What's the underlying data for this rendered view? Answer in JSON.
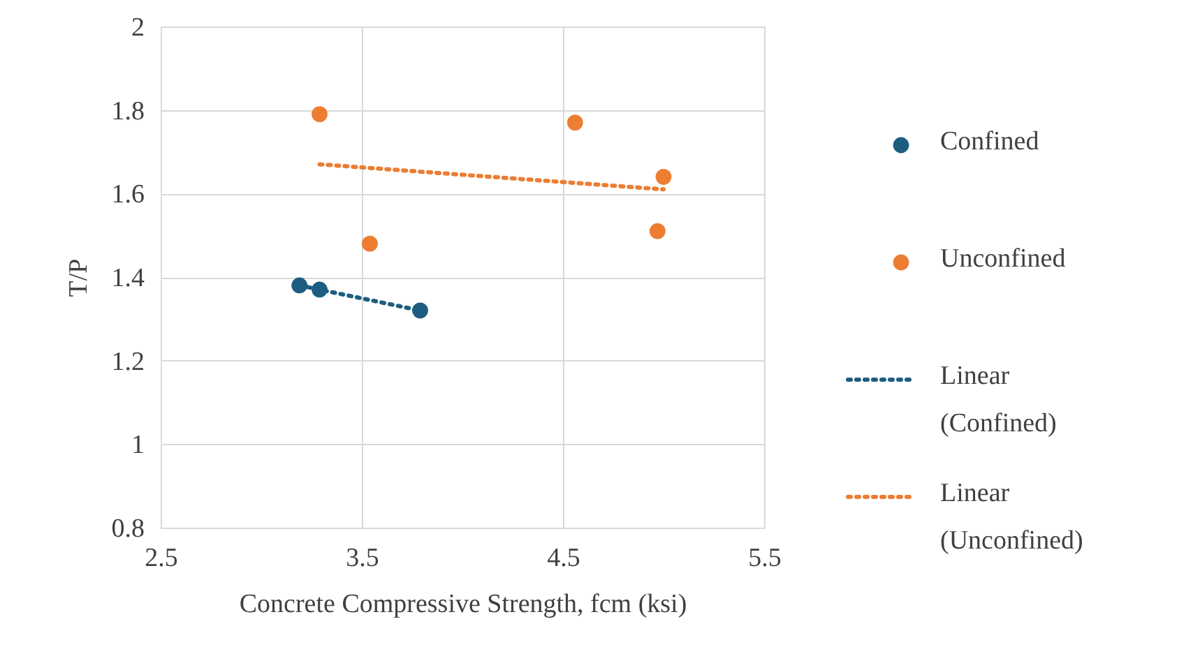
{
  "chart_data": {
    "type": "scatter",
    "xlabel": "Concrete Compressive Strength, fcm (ksi)",
    "ylabel": "T/P",
    "xlim": [
      2.5,
      5.5
    ],
    "xticks": [
      2.5,
      3.5,
      4.5,
      5.5
    ],
    "ylim": [
      0.8,
      2
    ],
    "yticks": [
      0.8,
      1,
      1.2,
      1.4,
      1.6,
      1.8,
      2
    ],
    "grid": true,
    "legend": "right",
    "series": [
      {
        "name": "Confined",
        "marker": "circle",
        "color": "#1d5d80",
        "x": [
          3.19,
          3.29,
          3.79
        ],
        "values": [
          1.38,
          1.37,
          1.32
        ]
      },
      {
        "name": "Unconfined",
        "marker": "circle",
        "color": "#ed7d31",
        "x": [
          3.29,
          3.54,
          4.56,
          4.97,
          5.0
        ],
        "values": [
          1.79,
          1.48,
          1.77,
          1.51,
          1.64
        ]
      },
      {
        "name": "Linear (Confined)",
        "type": "line",
        "line_style": "dotted",
        "color": "#1d5d80",
        "x": [
          3.19,
          3.79
        ],
        "values": [
          1.38,
          1.32
        ]
      },
      {
        "name": "Linear (Unconfined)",
        "type": "line",
        "line_style": "dotted",
        "color": "#ed7d31",
        "x": [
          3.29,
          5.0
        ],
        "values": [
          1.67,
          1.61
        ]
      }
    ]
  }
}
